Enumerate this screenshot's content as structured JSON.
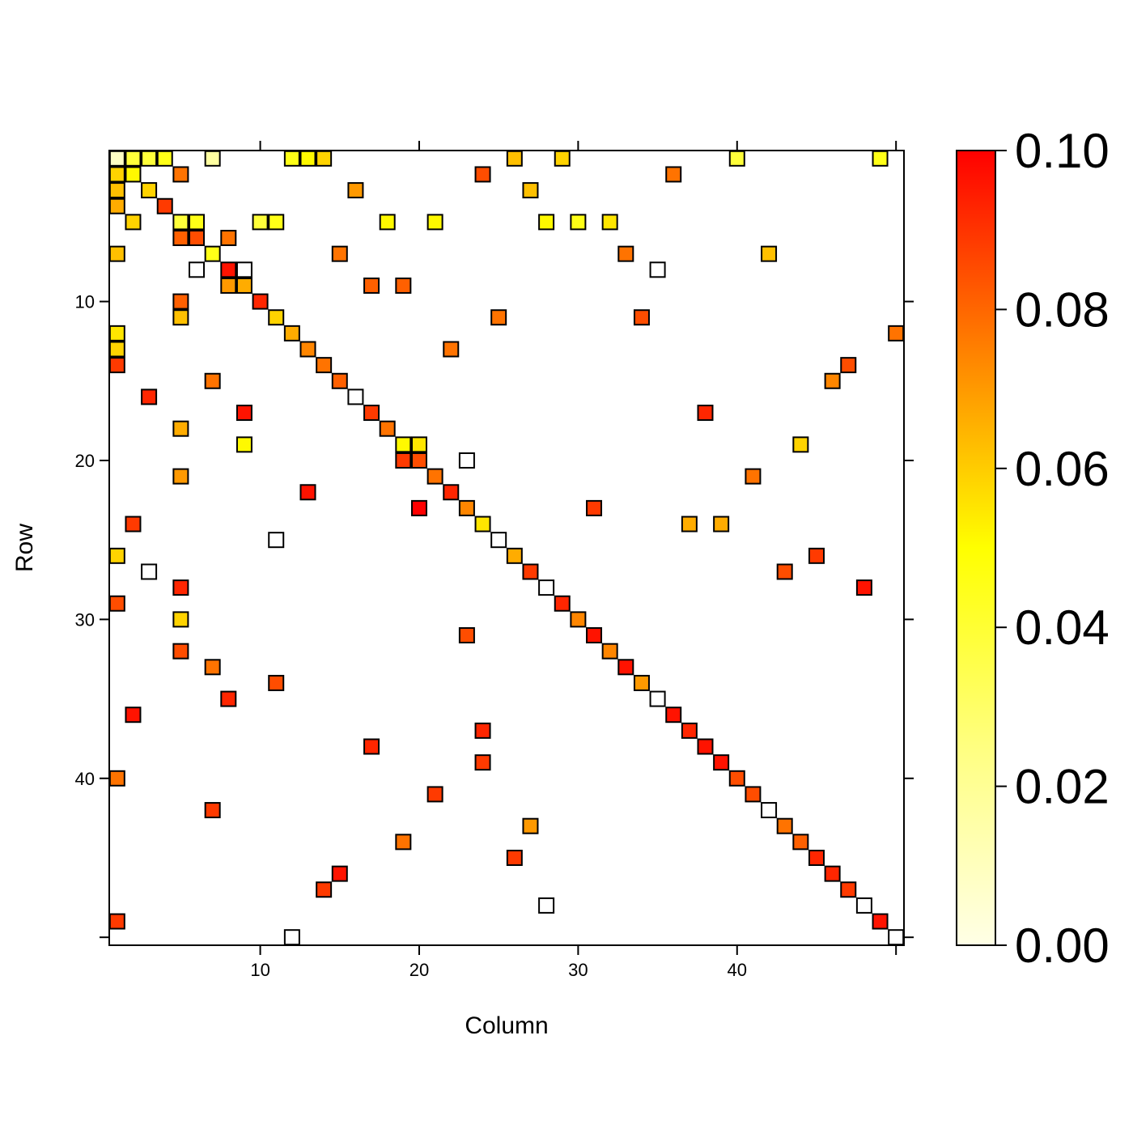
{
  "chart_data": {
    "type": "heatmap",
    "title": "",
    "xlabel": "Column",
    "ylabel": "Row",
    "xlim": [
      0.5,
      50.5
    ],
    "ylim": [
      0.5,
      50.5
    ],
    "x_ticks": [
      10,
      20,
      30,
      40
    ],
    "y_ticks": [
      10,
      20,
      30,
      40
    ],
    "y_reversed": true,
    "colorbar": {
      "range": [
        0,
        0.1
      ],
      "tick_labels": [
        "0.00",
        "0.02",
        "0.04",
        "0.06",
        "0.08",
        "0.10"
      ],
      "colors": [
        "#ffffe6",
        "#ffff00",
        "#ff8000",
        "#ff0000"
      ]
    },
    "cells": [
      [
        1,
        1,
        0.005
      ],
      [
        2,
        1,
        0.025
      ],
      [
        3,
        1,
        0.025
      ],
      [
        4,
        1,
        0.03
      ],
      [
        7,
        1,
        0.01
      ],
      [
        12,
        1,
        0.03
      ],
      [
        13,
        1,
        0.035
      ],
      [
        14,
        1,
        0.045
      ],
      [
        26,
        1,
        0.05
      ],
      [
        29,
        1,
        0.045
      ],
      [
        40,
        1,
        0.025
      ],
      [
        49,
        1,
        0.03
      ],
      [
        1,
        2,
        0.045
      ],
      [
        2,
        2,
        0.035
      ],
      [
        5,
        2,
        0.07
      ],
      [
        24,
        2,
        0.08
      ],
      [
        36,
        2,
        0.07
      ],
      [
        1,
        3,
        0.05
      ],
      [
        3,
        3,
        0.045
      ],
      [
        16,
        3,
        0.06
      ],
      [
        27,
        3,
        0.05
      ],
      [
        1,
        4,
        0.055
      ],
      [
        4,
        4,
        0.085
      ],
      [
        2,
        5,
        0.045
      ],
      [
        5,
        5,
        0.025
      ],
      [
        6,
        5,
        0.03
      ],
      [
        10,
        5,
        0.025
      ],
      [
        11,
        5,
        0.03
      ],
      [
        18,
        5,
        0.035
      ],
      [
        21,
        5,
        0.035
      ],
      [
        28,
        5,
        0.035
      ],
      [
        30,
        5,
        0.03
      ],
      [
        32,
        5,
        0.04
      ],
      [
        5,
        6,
        0.075
      ],
      [
        6,
        6,
        0.08
      ],
      [
        8,
        6,
        0.07
      ],
      [
        1,
        7,
        0.05
      ],
      [
        7,
        7,
        0.03
      ],
      [
        15,
        7,
        0.07
      ],
      [
        33,
        7,
        0.07
      ],
      [
        42,
        7,
        0.05
      ],
      [
        6,
        8,
        0
      ],
      [
        8,
        8,
        0.095
      ],
      [
        9,
        8,
        0
      ],
      [
        35,
        8,
        0
      ],
      [
        8,
        9,
        0.06
      ],
      [
        9,
        9,
        0.055
      ],
      [
        17,
        9,
        0.075
      ],
      [
        19,
        9,
        0.075
      ],
      [
        10,
        10,
        0.09
      ],
      [
        5,
        10,
        0.075
      ],
      [
        5,
        11,
        0.05
      ],
      [
        11,
        11,
        0.045
      ],
      [
        25,
        11,
        0.07
      ],
      [
        34,
        11,
        0.08
      ],
      [
        1,
        12,
        0.04
      ],
      [
        12,
        12,
        0.055
      ],
      [
        50,
        12,
        0.07
      ],
      [
        1,
        13,
        0.045
      ],
      [
        13,
        13,
        0.065
      ],
      [
        22,
        13,
        0.07
      ],
      [
        1,
        14,
        0.085
      ],
      [
        14,
        14,
        0.07
      ],
      [
        47,
        14,
        0.08
      ],
      [
        7,
        15,
        0.07
      ],
      [
        15,
        15,
        0.075
      ],
      [
        46,
        15,
        0.065
      ],
      [
        3,
        16,
        0.09
      ],
      [
        16,
        16,
        0
      ],
      [
        9,
        17,
        0.095
      ],
      [
        17,
        17,
        0.085
      ],
      [
        38,
        17,
        0.09
      ],
      [
        5,
        18,
        0.055
      ],
      [
        18,
        18,
        0.07
      ],
      [
        9,
        19,
        0.035
      ],
      [
        19,
        19,
        0.035
      ],
      [
        20,
        19,
        0.04
      ],
      [
        44,
        19,
        0.045
      ],
      [
        19,
        20,
        0.085
      ],
      [
        20,
        20,
        0.08
      ],
      [
        23,
        20,
        0
      ],
      [
        5,
        21,
        0.06
      ],
      [
        21,
        21,
        0.07
      ],
      [
        41,
        21,
        0.07
      ],
      [
        13,
        22,
        0.095
      ],
      [
        22,
        22,
        0.09
      ],
      [
        20,
        23,
        0.1
      ],
      [
        23,
        23,
        0.065
      ],
      [
        31,
        23,
        0.085
      ],
      [
        2,
        24,
        0.085
      ],
      [
        24,
        24,
        0.04
      ],
      [
        37,
        24,
        0.055
      ],
      [
        39,
        24,
        0.055
      ],
      [
        11,
        25,
        0
      ],
      [
        25,
        25,
        0
      ],
      [
        1,
        26,
        0.045
      ],
      [
        26,
        26,
        0.055
      ],
      [
        45,
        26,
        0.085
      ],
      [
        3,
        27,
        0
      ],
      [
        27,
        27,
        0.085
      ],
      [
        43,
        27,
        0.08
      ],
      [
        5,
        28,
        0.09
      ],
      [
        28,
        28,
        0
      ],
      [
        48,
        28,
        0.095
      ],
      [
        1,
        29,
        0.08
      ],
      [
        29,
        29,
        0.09
      ],
      [
        5,
        30,
        0.045
      ],
      [
        30,
        30,
        0.065
      ],
      [
        23,
        31,
        0.08
      ],
      [
        31,
        31,
        0.095
      ],
      [
        5,
        32,
        0.08
      ],
      [
        32,
        32,
        0.065
      ],
      [
        7,
        33,
        0.07
      ],
      [
        33,
        33,
        0.095
      ],
      [
        11,
        34,
        0.08
      ],
      [
        34,
        34,
        0.06
      ],
      [
        8,
        35,
        0.09
      ],
      [
        35,
        35,
        0
      ],
      [
        2,
        36,
        0.095
      ],
      [
        36,
        36,
        0.095
      ],
      [
        24,
        37,
        0.09
      ],
      [
        37,
        37,
        0.09
      ],
      [
        17,
        38,
        0.09
      ],
      [
        38,
        38,
        0.095
      ],
      [
        24,
        39,
        0.085
      ],
      [
        39,
        39,
        0.095
      ],
      [
        1,
        40,
        0.07
      ],
      [
        40,
        40,
        0.08
      ],
      [
        21,
        41,
        0.085
      ],
      [
        41,
        41,
        0.08
      ],
      [
        7,
        42,
        0.085
      ],
      [
        42,
        42,
        0
      ],
      [
        27,
        43,
        0.06
      ],
      [
        43,
        43,
        0.07
      ],
      [
        19,
        44,
        0.07
      ],
      [
        44,
        44,
        0.075
      ],
      [
        26,
        45,
        0.085
      ],
      [
        45,
        45,
        0.09
      ],
      [
        15,
        46,
        0.095
      ],
      [
        46,
        46,
        0.09
      ],
      [
        14,
        47,
        0.085
      ],
      [
        47,
        47,
        0.085
      ],
      [
        28,
        48,
        0
      ],
      [
        48,
        48,
        0
      ],
      [
        1,
        49,
        0.085
      ],
      [
        49,
        49,
        0.095
      ],
      [
        12,
        50,
        0
      ],
      [
        50,
        50,
        0
      ]
    ]
  }
}
